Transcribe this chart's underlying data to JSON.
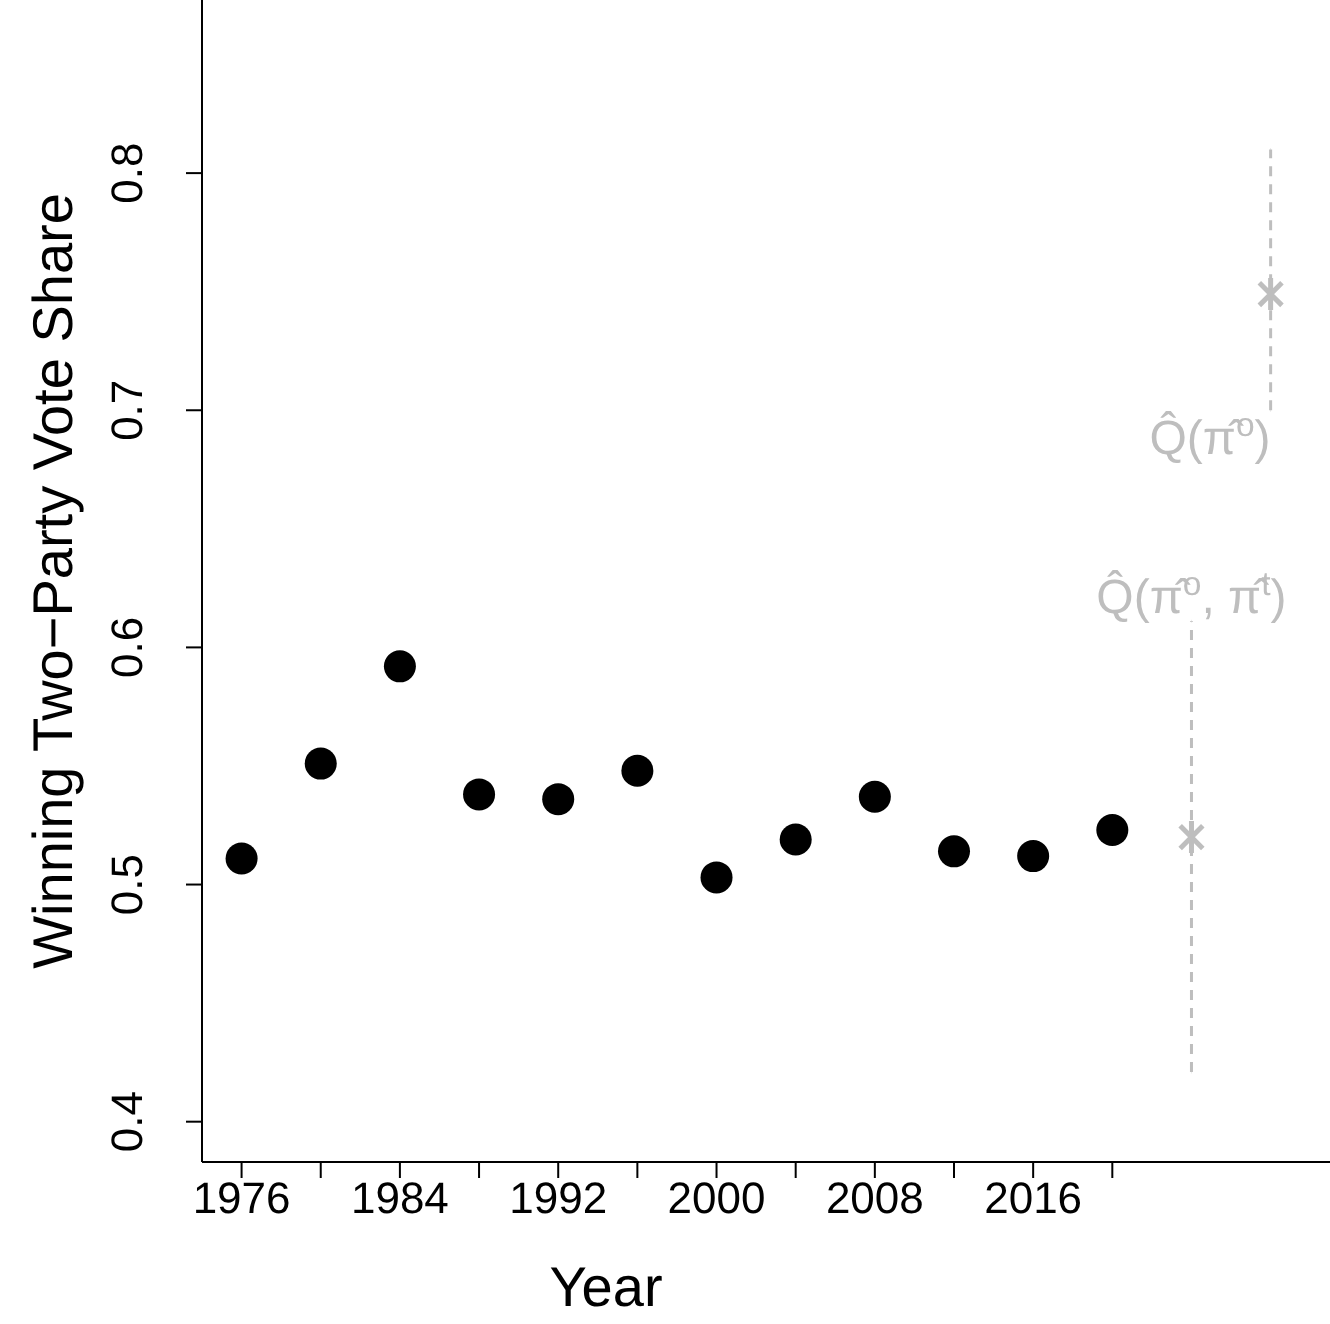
{
  "chart_data": {
    "type": "scatter",
    "xlabel": "Year",
    "ylabel": "Winning Two−Party Vote Share",
    "xlim": [
      1974,
      2031
    ],
    "ylim": [
      0.383,
      0.873
    ],
    "xticks": [
      1976,
      {
        "value": 1980,
        "label": null
      },
      1984,
      {
        "value": 1988,
        "label": null
      },
      1992,
      {
        "value": 1996,
        "label": null
      },
      2000,
      {
        "value": 2004,
        "label": null
      },
      2008,
      {
        "value": 2012,
        "label": null
      },
      2016,
      {
        "value": 2020,
        "label": null
      }
    ],
    "yticks": [
      0.4,
      0.5,
      0.6,
      0.7,
      0.8
    ],
    "series": [
      {
        "color": "#000000",
        "marker": "circle",
        "x": [
          1976,
          1980,
          1984,
          1988,
          1992,
          1996,
          2000,
          2004,
          2008,
          2012,
          2016,
          2020
        ],
        "values": [
          0.511,
          0.551,
          0.592,
          0.538,
          0.536,
          0.548,
          0.503,
          0.519,
          0.537,
          0.514,
          0.512,
          0.523
        ]
      },
      {
        "color": "#bebebe",
        "marker": "cross",
        "x": [
          2024,
          2028
        ],
        "values": [
          0.52,
          0.749
        ],
        "errors": [
          [
            0.421,
            0.611
          ],
          [
            0.7,
            0.81
          ]
        ],
        "line_style": "dashed"
      }
    ],
    "annotations": [
      "Q̂(π̂$^{o}$, π̂$^{t}$)",
      "Q̂(π̂$^{o}$)"
    ]
  }
}
